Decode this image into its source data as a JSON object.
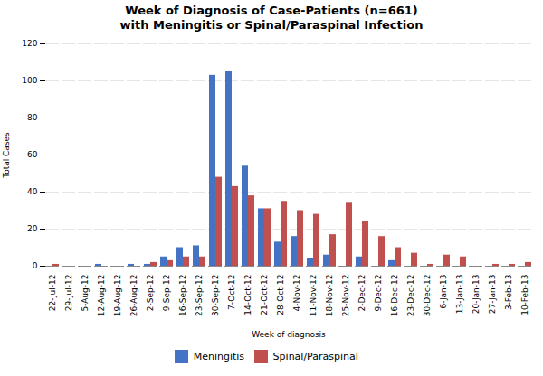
{
  "chart_data": {
    "type": "bar",
    "title": "Week of Diagnosis of Case-Patients (n=661)\nwith Meningitis or Spinal/Paraspinal Infection",
    "xlabel": "Week of diagnosis",
    "ylabel": "Total Cases",
    "categories": [
      "22-Jul-12",
      "29-Jul-12",
      "5-Aug-12",
      "12-Aug-12",
      "19-Aug-12",
      "26-Aug-12",
      "2-Sep-12",
      "9-Sep-12",
      "16-Sep-12",
      "23-Sep-12",
      "30-Sep-12",
      "7-Oct-12",
      "14-Oct-12",
      "21-Oct-12",
      "28-Oct-12",
      "4-Nov-12",
      "11-Nov-12",
      "18-Nov-12",
      "25-Nov-12",
      "2-Dec-12",
      "9-Dec-12",
      "16-Dec-12",
      "23-Dec-12",
      "30-Dec-12",
      "6-Jan-13",
      "13-Jan-13",
      "20-Jan-13",
      "27-Jan-13",
      "3-Feb-13",
      "10-Feb-13"
    ],
    "series": [
      {
        "name": "Meningitis",
        "color": "#4472C4",
        "values": [
          0,
          0,
          0,
          1,
          0,
          1,
          1,
          5,
          10,
          11,
          103,
          105,
          54,
          31,
          13,
          16,
          4,
          6,
          0,
          5,
          0,
          3,
          0,
          0,
          0,
          0,
          0,
          0,
          0,
          0
        ]
      },
      {
        "name": "Spinal/Paraspinal",
        "color": "#C0504D",
        "values": [
          1,
          0,
          0,
          0,
          0,
          0,
          2,
          3,
          5,
          5,
          48,
          43,
          38,
          31,
          35,
          30,
          28,
          17,
          34,
          24,
          16,
          10,
          7,
          1,
          6,
          5,
          0,
          1,
          1,
          2
        ]
      }
    ],
    "ylim": [
      0,
      120
    ],
    "yticks": [
      0,
      20,
      40,
      60,
      80,
      100,
      120
    ],
    "grid": true,
    "legend": "bottom"
  }
}
